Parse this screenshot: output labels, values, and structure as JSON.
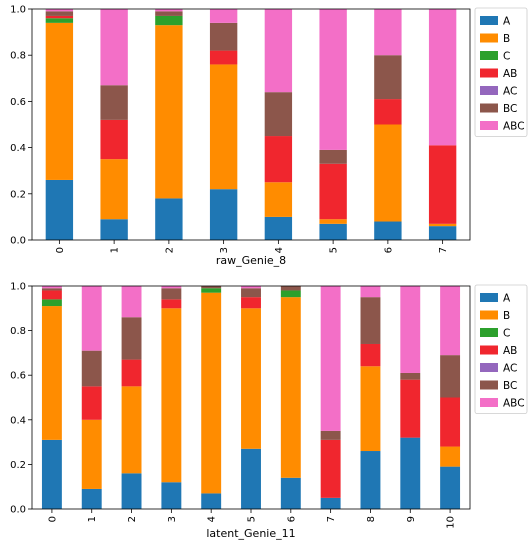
{
  "chart_data": [
    {
      "type": "bar",
      "stacked": true,
      "title": "",
      "xlabel": "raw_Genie_8",
      "ylabel": "",
      "ylim": [
        0,
        1
      ],
      "yticks": [
        "0.0",
        "0.2",
        "0.4",
        "0.6",
        "0.8",
        "1.0"
      ],
      "categories": [
        "0",
        "1",
        "2",
        "3",
        "4",
        "5",
        "6",
        "7"
      ],
      "legend_position": "right",
      "series": [
        {
          "name": "A",
          "color": "#1f77b4",
          "values": [
            0.26,
            0.09,
            0.18,
            0.22,
            0.1,
            0.07,
            0.08,
            0.06
          ]
        },
        {
          "name": "B",
          "color": "#ff8c00",
          "values": [
            0.68,
            0.26,
            0.75,
            0.54,
            0.15,
            0.02,
            0.42,
            0.01
          ]
        },
        {
          "name": "C",
          "color": "#2ca02c",
          "values": [
            0.02,
            0.0,
            0.04,
            0.0,
            0.0,
            0.0,
            0.0,
            0.0
          ]
        },
        {
          "name": "AB",
          "color": "#f0262e",
          "values": [
            0.01,
            0.17,
            0.0,
            0.06,
            0.2,
            0.24,
            0.11,
            0.34
          ]
        },
        {
          "name": "AC",
          "color": "#9467bd",
          "values": [
            0.0,
            0.0,
            0.0,
            0.0,
            0.0,
            0.0,
            0.0,
            0.0
          ]
        },
        {
          "name": "BC",
          "color": "#8c564b",
          "values": [
            0.02,
            0.15,
            0.02,
            0.12,
            0.19,
            0.06,
            0.19,
            0.0
          ]
        },
        {
          "name": "ABC",
          "color": "#f36fc7",
          "values": [
            0.01,
            0.33,
            0.01,
            0.06,
            0.36,
            0.61,
            0.2,
            0.59
          ]
        }
      ]
    },
    {
      "type": "bar",
      "stacked": true,
      "title": "",
      "xlabel": "latent_Genie_11",
      "ylabel": "",
      "ylim": [
        0,
        1
      ],
      "yticks": [
        "0.0",
        "0.2",
        "0.4",
        "0.6",
        "0.8",
        "1.0"
      ],
      "categories": [
        "0",
        "1",
        "2",
        "3",
        "4",
        "5",
        "6",
        "7",
        "8",
        "9",
        "10"
      ],
      "legend_position": "right",
      "series": [
        {
          "name": "A",
          "color": "#1f77b4",
          "values": [
            0.31,
            0.09,
            0.16,
            0.12,
            0.07,
            0.27,
            0.14,
            0.05,
            0.26,
            0.32,
            0.19
          ]
        },
        {
          "name": "B",
          "color": "#ff8c00",
          "values": [
            0.6,
            0.31,
            0.39,
            0.78,
            0.9,
            0.63,
            0.81,
            0.0,
            0.38,
            0.0,
            0.09
          ]
        },
        {
          "name": "C",
          "color": "#2ca02c",
          "values": [
            0.03,
            0.0,
            0.0,
            0.0,
            0.02,
            0.0,
            0.03,
            0.0,
            0.0,
            0.0,
            0.0
          ]
        },
        {
          "name": "AB",
          "color": "#f0262e",
          "values": [
            0.04,
            0.15,
            0.12,
            0.04,
            0.0,
            0.05,
            0.0,
            0.26,
            0.1,
            0.26,
            0.22
          ]
        },
        {
          "name": "AC",
          "color": "#9467bd",
          "values": [
            0.0,
            0.0,
            0.0,
            0.0,
            0.0,
            0.0,
            0.0,
            0.0,
            0.0,
            0.0,
            0.0
          ]
        },
        {
          "name": "BC",
          "color": "#8c564b",
          "values": [
            0.01,
            0.16,
            0.19,
            0.05,
            0.01,
            0.04,
            0.02,
            0.04,
            0.21,
            0.03,
            0.19
          ]
        },
        {
          "name": "ABC",
          "color": "#f36fc7",
          "values": [
            0.01,
            0.29,
            0.14,
            0.01,
            0.0,
            0.01,
            0.0,
            0.65,
            0.05,
            0.39,
            0.31
          ]
        }
      ]
    }
  ]
}
